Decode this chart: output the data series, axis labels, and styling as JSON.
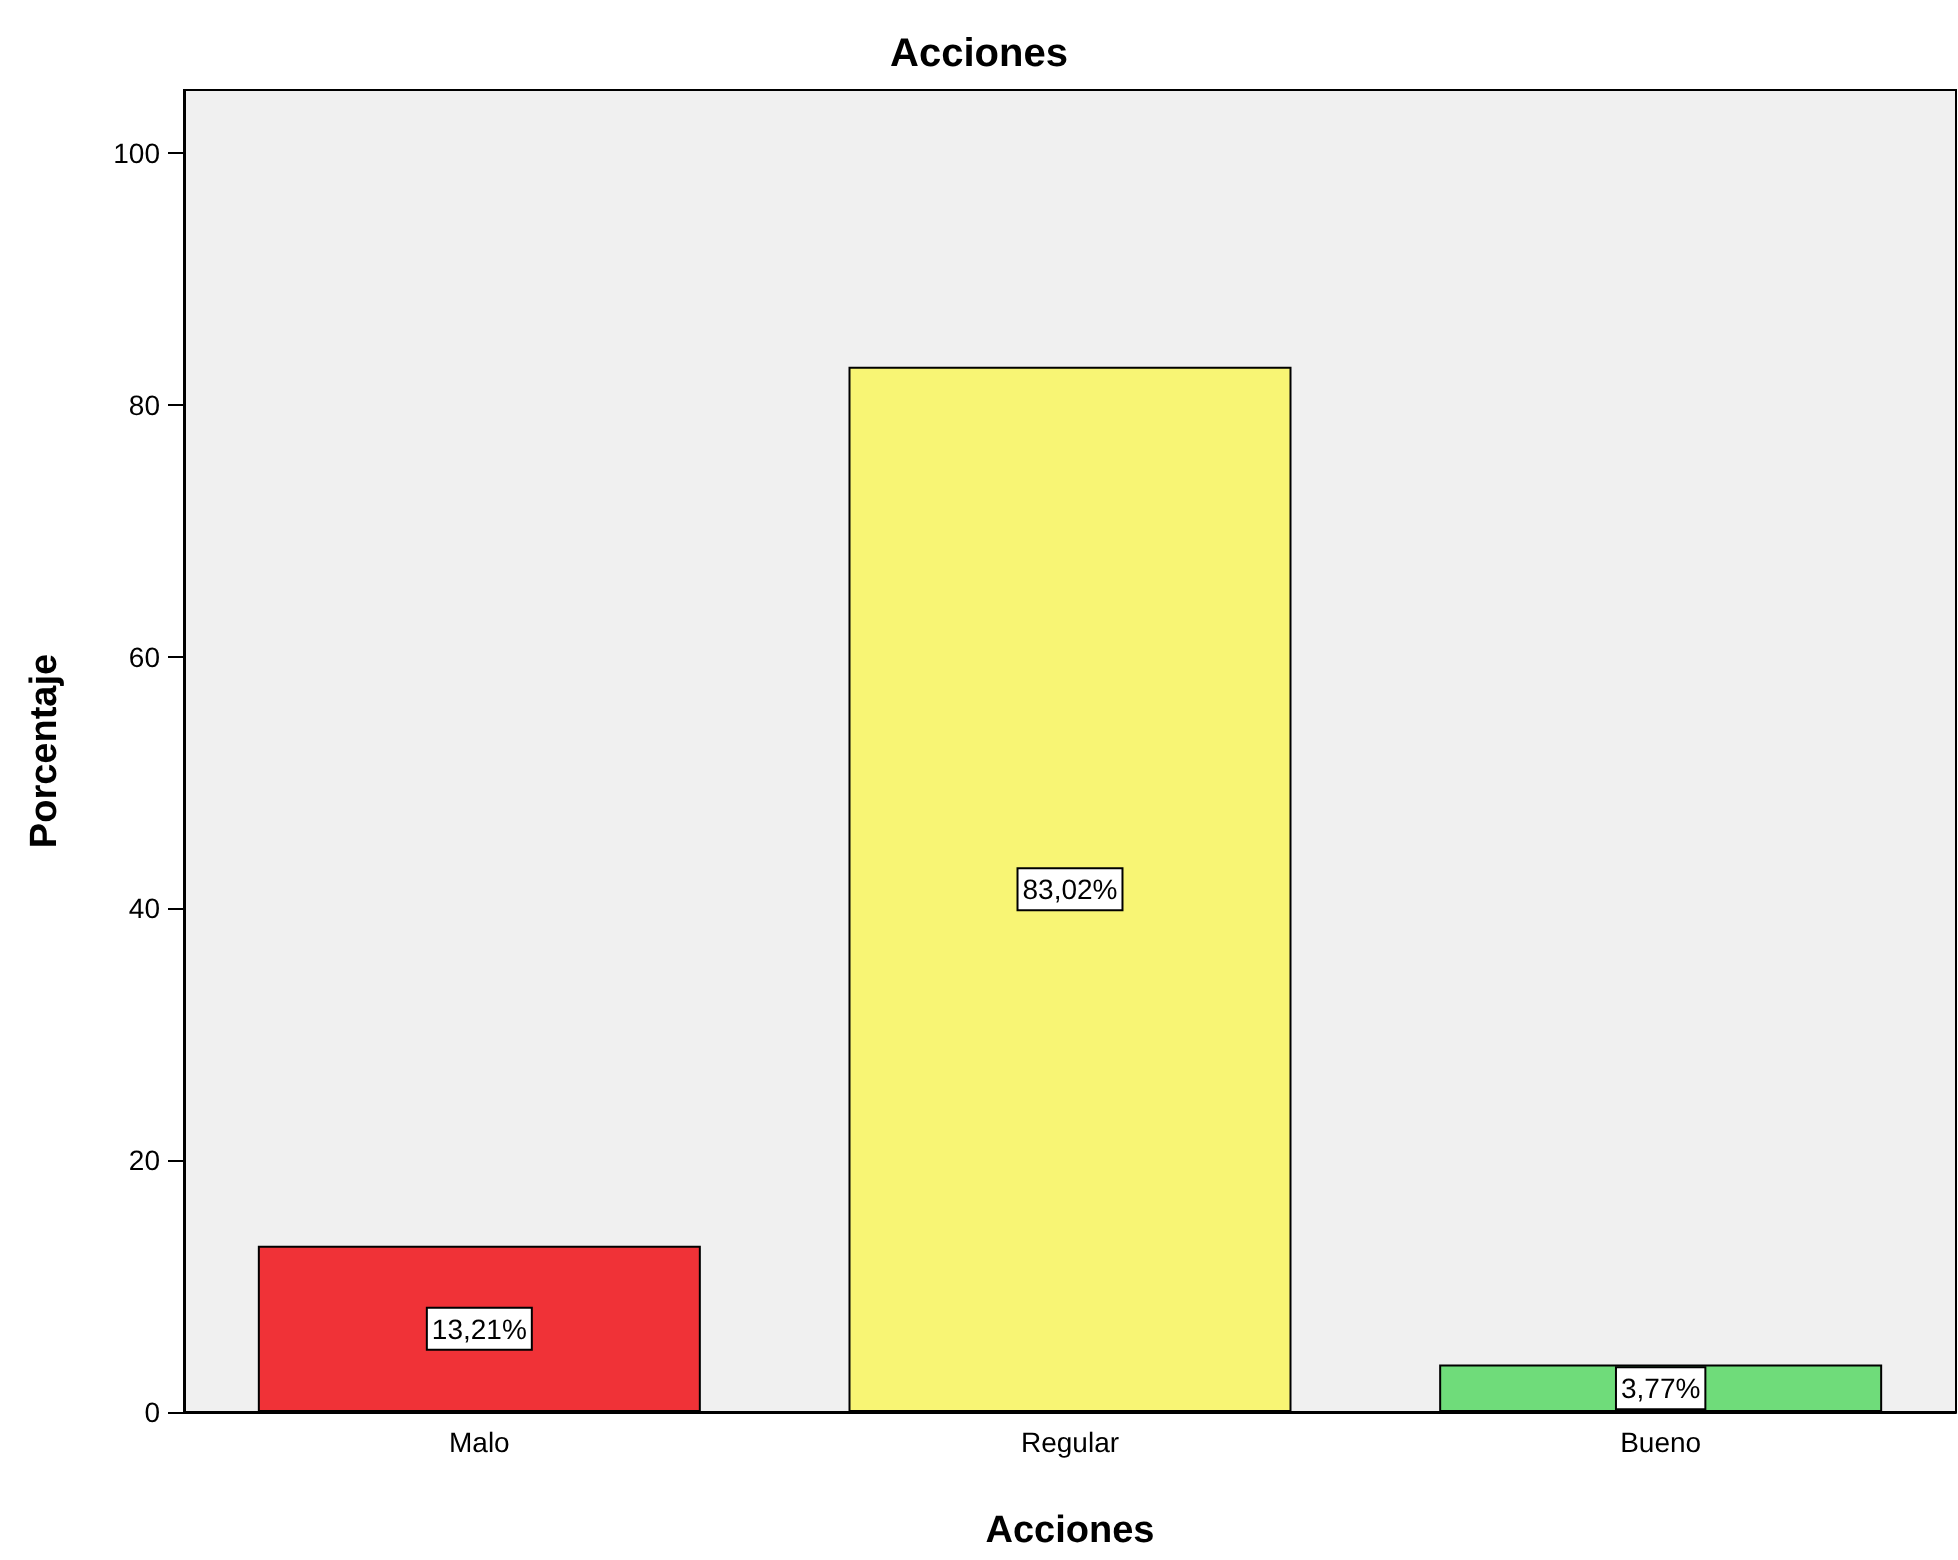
{
  "chart_data": {
    "type": "bar",
    "title": "Acciones",
    "xlabel": "Acciones",
    "ylabel": "Porcentaje",
    "categories": [
      "Malo",
      "Regular",
      "Bueno"
    ],
    "values": [
      13.21,
      83.02,
      3.77
    ],
    "colors": [
      "#f03237",
      "#f8f574",
      "#6fdc7a"
    ],
    "value_labels": [
      "13,21%",
      "83,02%",
      "3,77%"
    ],
    "ylim": [
      0,
      105
    ],
    "yticks": [
      0,
      20,
      40,
      60,
      80,
      100
    ],
    "grid": false
  }
}
